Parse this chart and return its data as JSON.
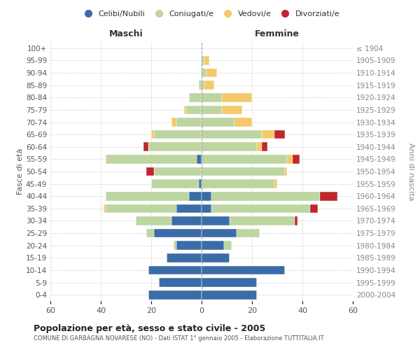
{
  "age_groups": [
    "0-4",
    "5-9",
    "10-14",
    "15-19",
    "20-24",
    "25-29",
    "30-34",
    "35-39",
    "40-44",
    "45-49",
    "50-54",
    "55-59",
    "60-64",
    "65-69",
    "70-74",
    "75-79",
    "80-84",
    "85-89",
    "90-94",
    "95-99",
    "100+"
  ],
  "birth_years": [
    "2000-2004",
    "1995-1999",
    "1990-1994",
    "1985-1989",
    "1980-1984",
    "1975-1979",
    "1970-1974",
    "1965-1969",
    "1960-1964",
    "1955-1959",
    "1950-1954",
    "1945-1949",
    "1940-1944",
    "1935-1939",
    "1930-1934",
    "1925-1929",
    "1920-1924",
    "1915-1919",
    "1910-1914",
    "1905-1909",
    "≤ 1904"
  ],
  "males": {
    "celibi": [
      21,
      17,
      21,
      14,
      10,
      19,
      12,
      10,
      5,
      1,
      0,
      2,
      0,
      0,
      0,
      0,
      0,
      0,
      0,
      0,
      0
    ],
    "coniugati": [
      0,
      0,
      0,
      0,
      1,
      3,
      14,
      28,
      33,
      19,
      19,
      36,
      21,
      19,
      10,
      6,
      5,
      1,
      0,
      0,
      0
    ],
    "vedovi": [
      0,
      0,
      0,
      0,
      0,
      0,
      0,
      1,
      0,
      0,
      0,
      0,
      0,
      1,
      2,
      1,
      0,
      0,
      0,
      0,
      0
    ],
    "divorziati": [
      0,
      0,
      0,
      0,
      0,
      0,
      0,
      0,
      0,
      0,
      3,
      0,
      2,
      0,
      0,
      0,
      0,
      0,
      0,
      0,
      0
    ]
  },
  "females": {
    "nubili": [
      22,
      22,
      33,
      11,
      9,
      14,
      11,
      4,
      4,
      0,
      0,
      0,
      0,
      0,
      0,
      0,
      0,
      0,
      0,
      0,
      0
    ],
    "coniugate": [
      0,
      0,
      0,
      0,
      3,
      9,
      26,
      39,
      43,
      29,
      33,
      34,
      22,
      24,
      13,
      8,
      8,
      1,
      2,
      1,
      0
    ],
    "vedove": [
      0,
      0,
      0,
      0,
      0,
      0,
      0,
      0,
      0,
      1,
      1,
      2,
      2,
      5,
      7,
      8,
      12,
      4,
      4,
      2,
      0
    ],
    "divorziate": [
      0,
      0,
      0,
      0,
      0,
      0,
      1,
      3,
      7,
      0,
      0,
      3,
      2,
      4,
      0,
      0,
      0,
      0,
      0,
      0,
      0
    ]
  },
  "colors": {
    "celibi": "#3a6ca8",
    "coniugati": "#bdd5a0",
    "vedovi": "#f5c96a",
    "divorziati": "#c0272d"
  },
  "xlim": 60,
  "title": "Popolazione per età, sesso e stato civile - 2005",
  "subtitle": "COMUNE DI GARBAGNA NOVARESE (NO) - Dati ISTAT 1° gennaio 2005 - Elaborazione TUTTITALIA.IT",
  "ylabel_left": "Fasce di età",
  "ylabel_right": "Anni di nascita",
  "xlabel_left": "Maschi",
  "xlabel_right": "Femmine",
  "legend_labels": [
    "Celibi/Nubili",
    "Coniugati/e",
    "Vedovi/e",
    "Divorziati/e"
  ],
  "background_color": "#ffffff",
  "grid_color": "#cccccc"
}
